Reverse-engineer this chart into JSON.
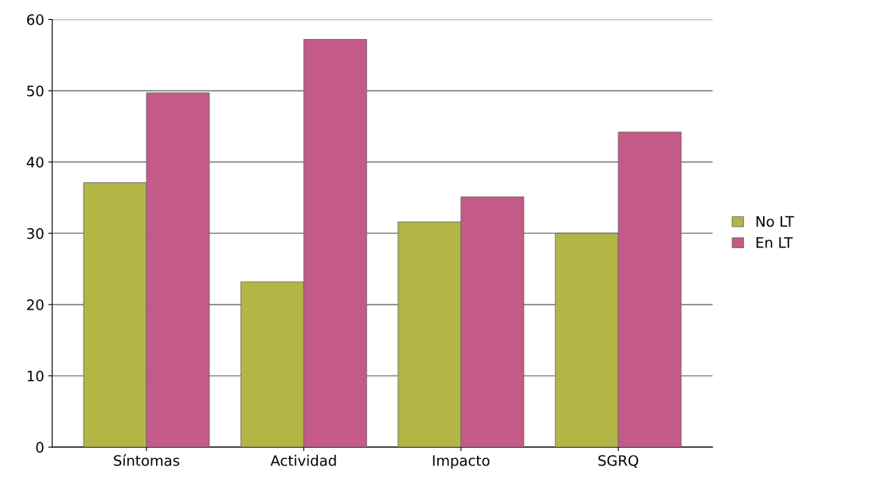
{
  "chart_data": {
    "type": "bar",
    "categories": [
      "Síntomas",
      "Actividad",
      "Impacto",
      "SGRQ"
    ],
    "series": [
      {
        "name": "No LT",
        "color": "#b3b545",
        "values": [
          37.1,
          23.2,
          31.6,
          30.0
        ]
      },
      {
        "name": "En LT",
        "color": "#c45a88",
        "values": [
          49.7,
          57.2,
          35.1,
          44.2
        ]
      }
    ],
    "ylim": [
      0,
      60
    ],
    "yticks": [
      0,
      10,
      20,
      30,
      40,
      50,
      60
    ],
    "grid": "y",
    "legend": "right"
  }
}
